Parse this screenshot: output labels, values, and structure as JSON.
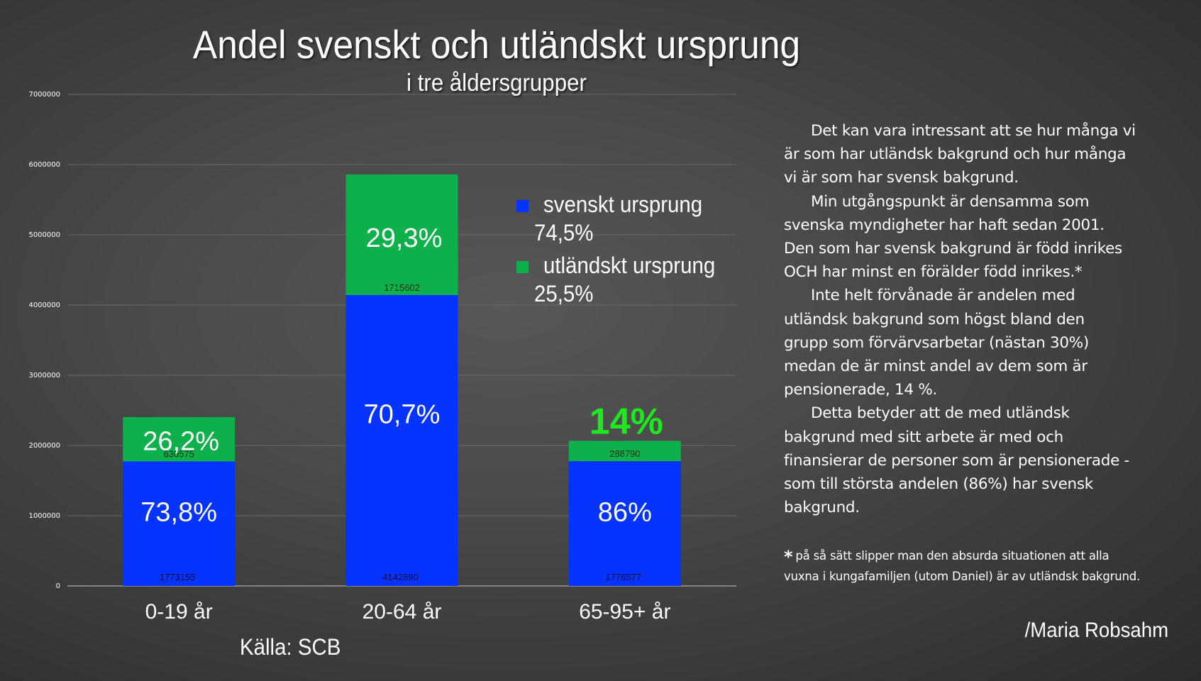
{
  "chart_data": {
    "type": "bar",
    "stacked": true,
    "title": "Andel svenskt och utländskt ursprung",
    "subtitle": "i tre åldersgrupper",
    "xlabel": "",
    "ylabel": "",
    "ylim": [
      0,
      7000000
    ],
    "yticks": [
      0,
      1000000,
      2000000,
      3000000,
      4000000,
      5000000,
      6000000,
      7000000
    ],
    "ytick_labels": [
      "0",
      "1000000",
      "2000000",
      "3000000",
      "4000000",
      "5000000",
      "6000000",
      "7000000"
    ],
    "grid": true,
    "categories": [
      "0-19 år",
      "20-64 år",
      "65-95+ år"
    ],
    "series": [
      {
        "name": "svenskt ursprung",
        "color": "#0533ff",
        "values": [
          1773155,
          4142890,
          1776577
        ],
        "value_labels": [
          "1773155",
          "4142890",
          "1776577"
        ],
        "percent_labels": [
          "73,8%",
          "70,7%",
          "86%"
        ]
      },
      {
        "name": "utländskt ursprung",
        "color": "#0db04b",
        "values": [
          630575,
          1715602,
          288790
        ],
        "value_labels": [
          "630575",
          "1715602",
          "288790"
        ],
        "percent_labels": [
          "26,2%",
          "29,3%",
          ""
        ]
      }
    ],
    "highlight_annotation": {
      "category": "65-95+ år",
      "text": "14%",
      "color": "#1ee81e"
    },
    "legend": {
      "placement": "top-right",
      "items": [
        {
          "label": "svenskt ursprung",
          "percent": "74,5%",
          "color": "#0533ff"
        },
        {
          "label": "utländskt ursprung",
          "percent": "25,5%",
          "color": "#0db04b"
        }
      ]
    },
    "source": "Källa: SCB"
  },
  "commentary": {
    "paragraphs": [
      "Det kan vara intressant att se hur många vi\när som har utländsk bakgrund och hur många\nvi är som har svensk bakgrund.",
      "Min utgångspunkt är densamma som\nsvenska myndigheter har haft sedan 2001.\nDen som har svensk bakgrund är född inrikes\nOCH har minst en förälder född inrikes.*",
      "Inte helt förvånade är andelen med\nutländsk bakgrund som högst bland den\ngrupp som förvärvsarbetar (nästan 30%)\nmedan de är minst andel av dem som är\npensionerade, 14 %.",
      "Detta betyder att de med utländsk\nbakgrund med sitt arbete är med och\nfinansierar de personer som är pensionerade -\nsom till största andelen (86%) har svensk\nbakgrund."
    ],
    "footnote_marker": "*",
    "footnote": "på så sätt slipper man den absurda situationen att alla\nvuxna i kungafamiljen (utom Daniel) är av utländsk bakgrund.",
    "signature": "/Maria Robsahm"
  }
}
